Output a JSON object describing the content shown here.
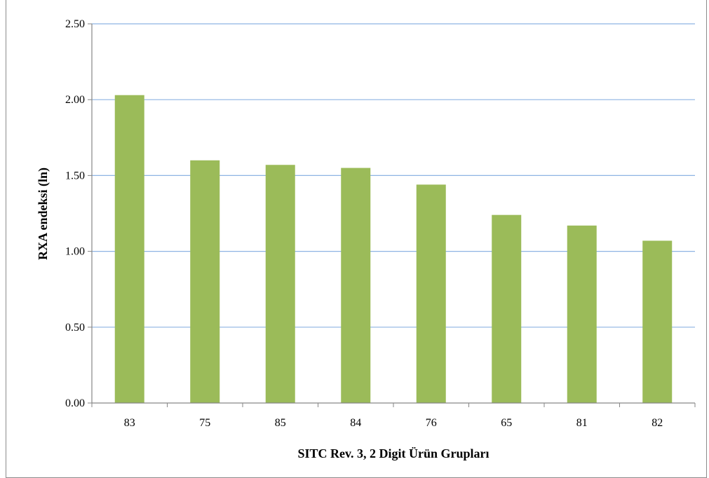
{
  "chart_data": {
    "type": "bar",
    "categories": [
      "83",
      "75",
      "85",
      "84",
      "76",
      "65",
      "81",
      "82"
    ],
    "values": [
      2.03,
      1.6,
      1.57,
      1.55,
      1.44,
      1.24,
      1.17,
      1.07
    ],
    "xlabel": "SITC Rev. 3, 2 Digit Ürün Grupları",
    "ylabel": "RXA endeksi  (ln)",
    "ylim": [
      0,
      2.5
    ],
    "yticks": [
      "0.00",
      "0.50",
      "1.00",
      "1.50",
      "2.00",
      "2.50"
    ],
    "grid": true,
    "legend": "none",
    "colors": {
      "bar": "#9BBB59",
      "grid": "#8EB4E3",
      "axis": "#868686"
    }
  }
}
